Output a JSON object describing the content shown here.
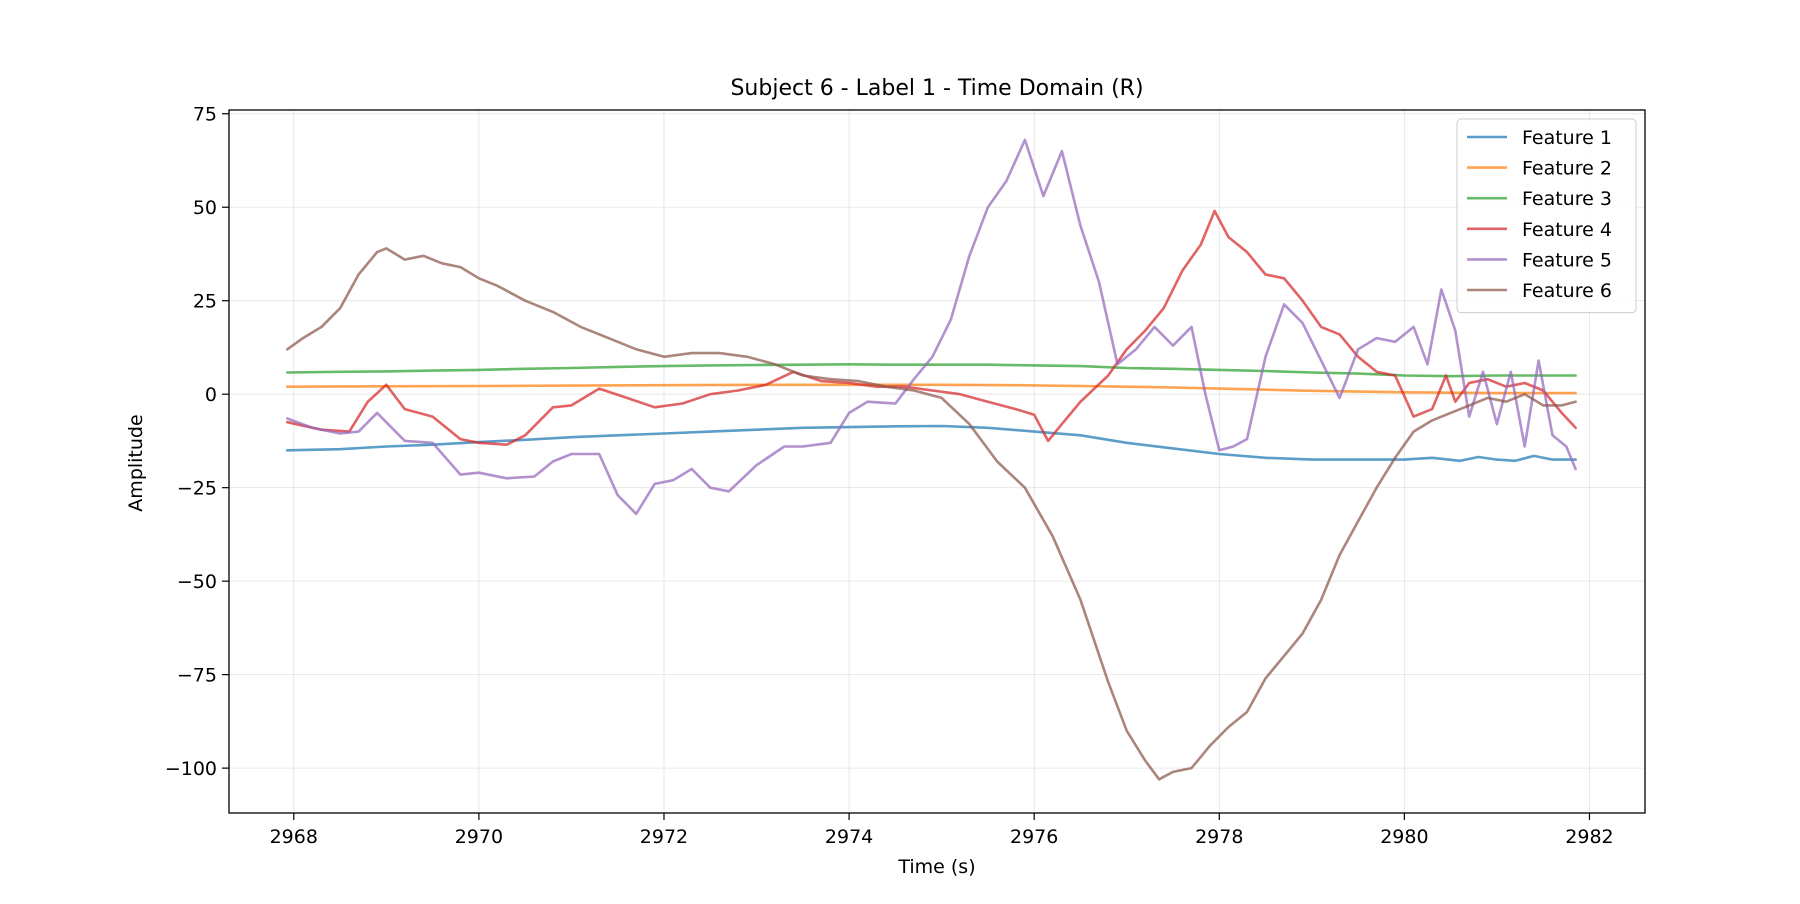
{
  "chart_data": {
    "type": "line",
    "title": "Subject 6 - Label 1 - Time Domain (R)",
    "xlabel": "Time (s)",
    "ylabel": "Amplitude",
    "xlim": [
      2967.3,
      2982.6
    ],
    "ylim": [
      -112,
      76
    ],
    "xticks": [
      2968,
      2970,
      2972,
      2974,
      2976,
      2978,
      2980,
      2982
    ],
    "xtick_labels": [
      "2968",
      "2970",
      "2972",
      "2974",
      "2976",
      "2978",
      "2980",
      "2982"
    ],
    "yticks": [
      75,
      50,
      25,
      0,
      -25,
      -50,
      -75,
      -100
    ],
    "ytick_labels": [
      "75",
      "50",
      "25",
      "0",
      "−25",
      "−50",
      "−75",
      "−100"
    ],
    "grid": true,
    "legend": "upper right",
    "series": [
      {
        "name": "Feature 1",
        "color": "#1f77b4",
        "x": [
          2967.93,
          2968.5,
          2969,
          2969.5,
          2970,
          2970.5,
          2971,
          2971.5,
          2972,
          2972.5,
          2973,
          2973.5,
          2974,
          2974.5,
          2975,
          2975.5,
          2976,
          2976.5,
          2977,
          2977.5,
          2978,
          2978.5,
          2979,
          2979.5,
          2980,
          2980.3,
          2980.6,
          2980.8,
          2981,
          2981.2,
          2981.4,
          2981.6,
          2981.85
        ],
        "y": [
          -15,
          -14.7,
          -14,
          -13.5,
          -12.8,
          -12.2,
          -11.5,
          -11,
          -10.5,
          -10,
          -9.5,
          -9,
          -8.8,
          -8.6,
          -8.5,
          -9,
          -10,
          -11,
          -13,
          -14.5,
          -16,
          -17,
          -17.5,
          -17.5,
          -17.5,
          -17,
          -17.8,
          -16.8,
          -17.5,
          -17.8,
          -16.5,
          -17.5,
          -17.5
        ]
      },
      {
        "name": "Feature 2",
        "color": "#ff7f0e",
        "x": [
          2967.93,
          2969,
          2970,
          2971,
          2972,
          2973,
          2974,
          2975,
          2975.8,
          2976.5,
          2977,
          2977.5,
          2978,
          2978.5,
          2979,
          2979.5,
          2980,
          2980.5,
          2981,
          2981.5,
          2981.85
        ],
        "y": [
          2,
          2.1,
          2.2,
          2.3,
          2.4,
          2.5,
          2.5,
          2.5,
          2.4,
          2.2,
          2,
          1.8,
          1.5,
          1.2,
          0.9,
          0.7,
          0.5,
          0.4,
          0.3,
          0.3,
          0.3
        ]
      },
      {
        "name": "Feature 3",
        "color": "#2ca02c",
        "x": [
          2967.93,
          2968.5,
          2969,
          2969.5,
          2970,
          2970.5,
          2971,
          2971.5,
          2972,
          2972.5,
          2973,
          2973.5,
          2974,
          2974.5,
          2975,
          2975.5,
          2976,
          2976.5,
          2977,
          2977.5,
          2978,
          2978.5,
          2979,
          2979.5,
          2980,
          2980.5,
          2981,
          2981.5,
          2981.85
        ],
        "y": [
          5.8,
          6,
          6.1,
          6.3,
          6.5,
          6.8,
          7,
          7.3,
          7.5,
          7.7,
          7.8,
          7.9,
          8,
          7.9,
          7.9,
          7.9,
          7.7,
          7.5,
          7,
          6.8,
          6.5,
          6.2,
          5.8,
          5.5,
          5,
          4.8,
          5,
          5,
          5
        ]
      },
      {
        "name": "Feature 4",
        "color": "#d62728",
        "x": [
          2967.93,
          2968.3,
          2968.6,
          2968.8,
          2969,
          2969.2,
          2969.5,
          2969.8,
          2970,
          2970.3,
          2970.5,
          2970.8,
          2971,
          2971.3,
          2971.6,
          2971.9,
          2972.2,
          2972.5,
          2972.8,
          2973.1,
          2973.4,
          2973.7,
          2974,
          2974.3,
          2974.6,
          2974.9,
          2975.2,
          2975.5,
          2975.8,
          2976,
          2976.15,
          2976.3,
          2976.5,
          2976.8,
          2977,
          2977.2,
          2977.4,
          2977.6,
          2977.8,
          2977.95,
          2978.1,
          2978.3,
          2978.5,
          2978.7,
          2978.9,
          2979.1,
          2979.3,
          2979.5,
          2979.7,
          2979.9,
          2980.1,
          2980.3,
          2980.45,
          2980.55,
          2980.7,
          2980.9,
          2981.1,
          2981.3,
          2981.5,
          2981.7,
          2981.85
        ],
        "y": [
          -7.5,
          -9.5,
          -10,
          -2,
          2.5,
          -4,
          -6,
          -12,
          -13,
          -13.5,
          -11,
          -3.5,
          -3,
          1.5,
          -1,
          -3.5,
          -2.5,
          0,
          1,
          2.5,
          6,
          3.5,
          3,
          2,
          2,
          1,
          0,
          -2,
          -4,
          -5.5,
          -12.5,
          -8,
          -2,
          5,
          12,
          17,
          23,
          33,
          40,
          49,
          42,
          38,
          32,
          31,
          25,
          18,
          16,
          10,
          6,
          5,
          -6,
          -4,
          5,
          -2,
          3,
          4,
          2,
          3,
          1,
          -5,
          -9
        ]
      },
      {
        "name": "Feature 5",
        "color": "#9467bd",
        "x": [
          2967.93,
          2968.2,
          2968.5,
          2968.7,
          2968.9,
          2969.2,
          2969.5,
          2969.8,
          2970,
          2970.3,
          2970.6,
          2970.8,
          2971,
          2971.3,
          2971.5,
          2971.7,
          2971.9,
          2972.1,
          2972.3,
          2972.5,
          2972.7,
          2973,
          2973.3,
          2973.5,
          2973.8,
          2974,
          2974.2,
          2974.5,
          2974.7,
          2974.9,
          2975.1,
          2975.3,
          2975.5,
          2975.7,
          2975.9,
          2976.1,
          2976.3,
          2976.5,
          2976.7,
          2976.9,
          2977.1,
          2977.3,
          2977.5,
          2977.7,
          2977.85,
          2978,
          2978.15,
          2978.3,
          2978.5,
          2978.7,
          2978.9,
          2979.1,
          2979.3,
          2979.5,
          2979.7,
          2979.9,
          2980.1,
          2980.25,
          2980.4,
          2980.55,
          2980.7,
          2980.85,
          2981,
          2981.15,
          2981.3,
          2981.45,
          2981.6,
          2981.75,
          2981.85
        ],
        "y": [
          -6.5,
          -9,
          -10.5,
          -10,
          -5,
          -12.5,
          -13,
          -21.5,
          -21,
          -22.5,
          -22,
          -18,
          -16,
          -16,
          -27,
          -32,
          -24,
          -23,
          -20,
          -25,
          -26,
          -19,
          -14,
          -14,
          -13,
          -5,
          -2,
          -2.5,
          4,
          10,
          20,
          37,
          50,
          57,
          68,
          53,
          65,
          45,
          30,
          8,
          12,
          18,
          13,
          18,
          0,
          -15,
          -14,
          -12,
          10,
          24,
          19,
          9,
          -1,
          12,
          15,
          14,
          18,
          8,
          28,
          17,
          -6,
          6,
          -8,
          6,
          -14,
          9,
          -11,
          -14,
          -20
        ]
      },
      {
        "name": "Feature 6",
        "color": "#8c564b",
        "x": [
          2967.93,
          2968.1,
          2968.3,
          2968.5,
          2968.7,
          2968.9,
          2969,
          2969.2,
          2969.4,
          2969.6,
          2969.8,
          2970,
          2970.2,
          2970.5,
          2970.8,
          2971.1,
          2971.4,
          2971.7,
          2972,
          2972.3,
          2972.6,
          2972.9,
          2973.2,
          2973.5,
          2973.8,
          2974.1,
          2974.4,
          2974.7,
          2975,
          2975.3,
          2975.6,
          2975.9,
          2976.2,
          2976.5,
          2976.8,
          2977,
          2977.2,
          2977.35,
          2977.5,
          2977.7,
          2977.9,
          2978.1,
          2978.3,
          2978.5,
          2978.7,
          2978.9,
          2979.1,
          2979.3,
          2979.5,
          2979.7,
          2979.9,
          2980.1,
          2980.3,
          2980.5,
          2980.7,
          2980.9,
          2981.1,
          2981.3,
          2981.5,
          2981.7,
          2981.85
        ],
        "y": [
          12,
          15,
          18,
          23,
          32,
          38,
          39,
          36,
          37,
          35,
          34,
          31,
          29,
          25,
          22,
          18,
          15,
          12,
          10,
          11,
          11,
          10,
          8,
          5,
          4,
          3.5,
          2,
          1,
          -1,
          -8,
          -18,
          -25,
          -38,
          -55,
          -77,
          -90,
          -98,
          -103,
          -101,
          -100,
          -94,
          -89,
          -85,
          -76,
          -70,
          -64,
          -55,
          -43,
          -34,
          -25,
          -17,
          -10,
          -7,
          -5,
          -3,
          -1,
          -2,
          0,
          -3,
          -3,
          -2
        ]
      }
    ]
  }
}
